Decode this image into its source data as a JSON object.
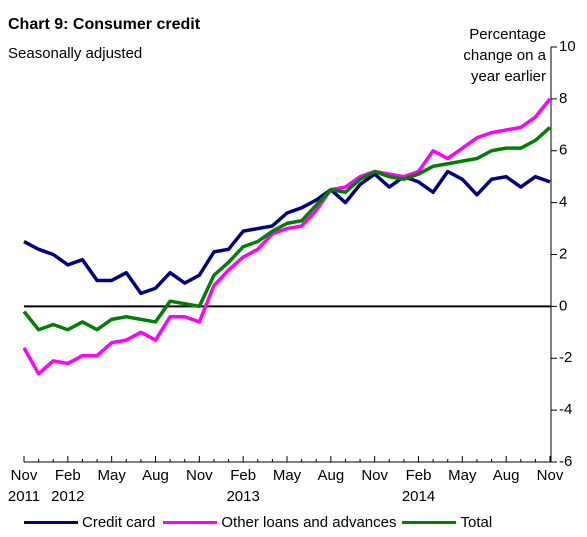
{
  "chart_data": {
    "type": "line",
    "title": "Chart 9: Consumer credit",
    "subtitle": "Seasonally adjusted",
    "y_label": "Percentage change on a year earlier",
    "categories": [
      "Nov 2011",
      null,
      null,
      "Feb 2012",
      null,
      null,
      "May",
      null,
      null,
      "Aug",
      null,
      null,
      "Nov",
      null,
      null,
      "Feb 2013",
      null,
      null,
      "May",
      null,
      null,
      "Aug",
      null,
      null,
      "Nov",
      null,
      null,
      "Feb 2014",
      null,
      null,
      "May",
      null,
      null,
      "Aug",
      null,
      null,
      "Nov"
    ],
    "ylim": [
      -6,
      10
    ],
    "yticks": [
      -6,
      -4,
      -2,
      0,
      2,
      4,
      6,
      8,
      10
    ],
    "series": [
      {
        "name": "Credit card",
        "color": "#000080",
        "values": [
          2.5,
          2.2,
          2.0,
          1.6,
          1.8,
          1.0,
          1.0,
          1.3,
          0.5,
          0.7,
          1.3,
          0.9,
          1.2,
          2.1,
          2.2,
          2.9,
          3.0,
          3.1,
          3.6,
          3.8,
          4.1,
          4.5,
          4.0,
          4.7,
          5.1,
          4.6,
          5.0,
          4.8,
          4.4,
          5.2,
          4.9,
          4.3,
          4.9,
          5.0,
          4.6,
          5.0,
          4.8
        ]
      },
      {
        "name": "Other loans and advances",
        "color": "#ff00ff",
        "values": [
          -1.6,
          -2.6,
          -2.1,
          -2.2,
          -1.9,
          -1.9,
          -1.4,
          -1.3,
          -1.0,
          -1.3,
          -0.4,
          -0.4,
          -0.6,
          0.8,
          1.4,
          1.9,
          2.2,
          2.8,
          3.0,
          3.1,
          3.7,
          4.5,
          4.6,
          5.0,
          5.2,
          5.1,
          5.0,
          5.2,
          6.0,
          5.7,
          6.1,
          6.5,
          6.7,
          6.8,
          6.9,
          7.3,
          8.0
        ]
      },
      {
        "name": "Total",
        "color": "#008000",
        "values": [
          -0.2,
          -0.9,
          -0.7,
          -0.9,
          -0.6,
          -0.9,
          -0.5,
          -0.4,
          -0.5,
          -0.6,
          0.2,
          0.1,
          0.0,
          1.2,
          1.7,
          2.3,
          2.5,
          2.9,
          3.2,
          3.3,
          3.9,
          4.5,
          4.4,
          4.9,
          5.2,
          5.0,
          4.9,
          5.1,
          5.4,
          5.5,
          5.6,
          5.7,
          6.0,
          6.1,
          6.1,
          6.4,
          6.9
        ]
      }
    ]
  }
}
